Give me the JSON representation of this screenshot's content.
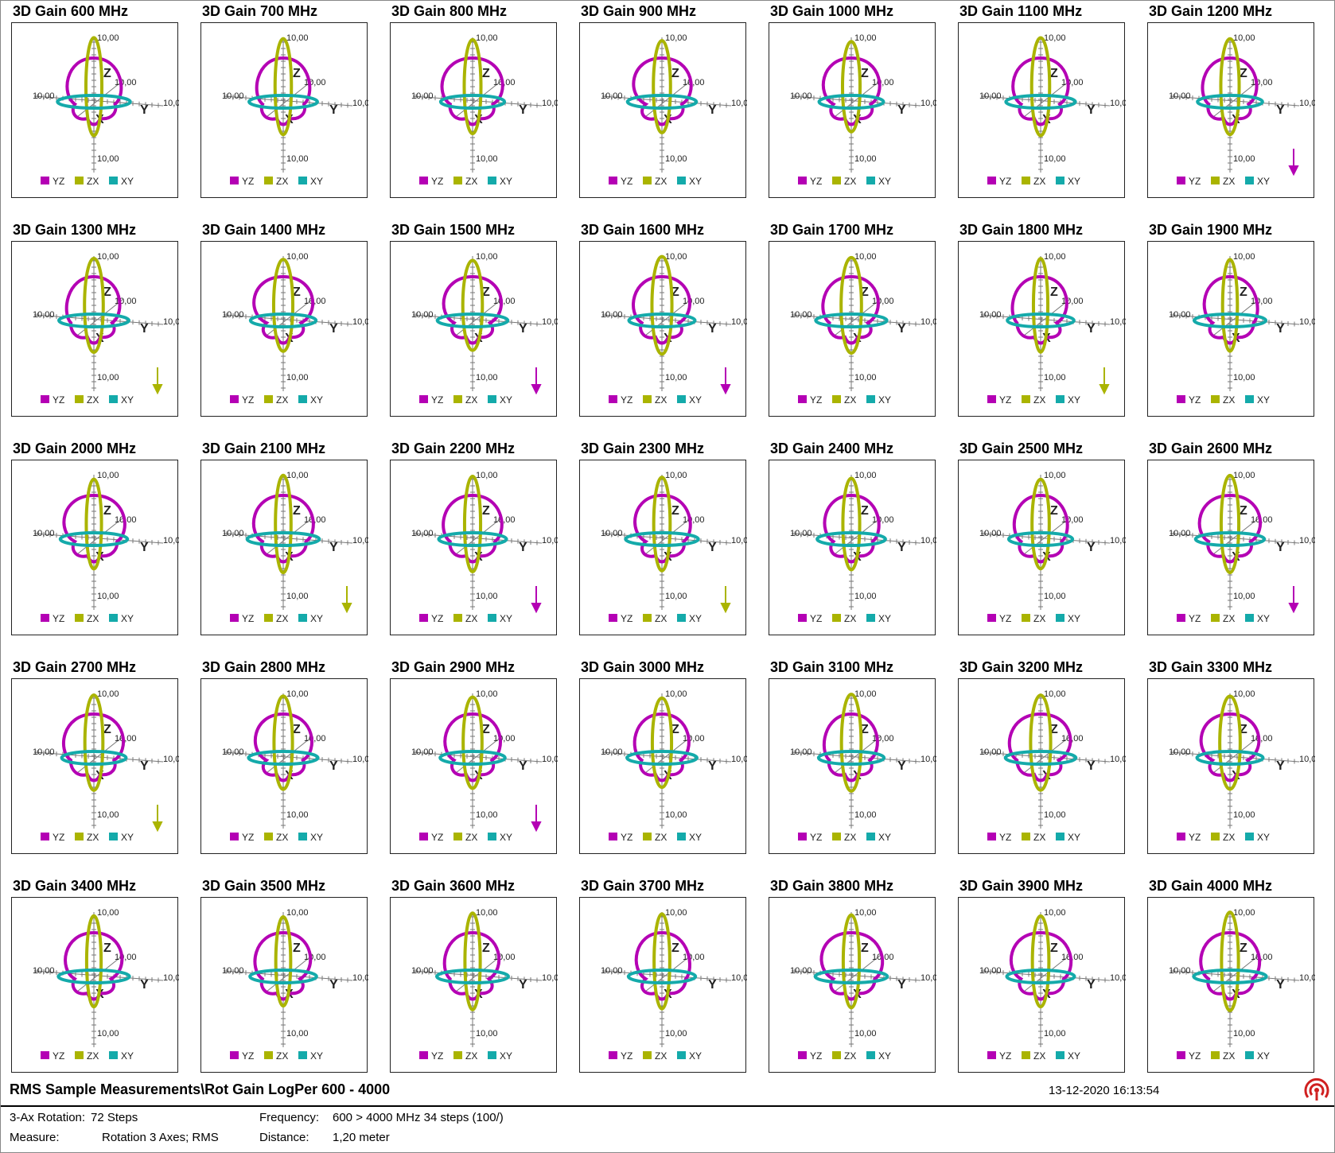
{
  "colors": {
    "YZ": "#b400b4",
    "ZX": "#aab400",
    "XY": "#14aaaa"
  },
  "chart_data": [
    {
      "type": "polar-3d",
      "title": "3D Gain 600 MHz",
      "series": [
        {
          "name": "YZ"
        },
        {
          "name": "ZX"
        },
        {
          "name": "XY"
        }
      ],
      "axis_labels": [
        "Z",
        "Y",
        "X"
      ],
      "tick_label": "10,00",
      "arrow": "none"
    },
    {
      "type": "polar-3d",
      "title": "3D Gain 700 MHz",
      "series": [
        {
          "name": "YZ"
        },
        {
          "name": "ZX"
        },
        {
          "name": "XY"
        }
      ],
      "axis_labels": [
        "Z",
        "Y",
        "X"
      ],
      "tick_label": "10,00",
      "arrow": "none"
    },
    {
      "type": "polar-3d",
      "title": "3D Gain 800 MHz",
      "series": [
        {
          "name": "YZ"
        },
        {
          "name": "ZX"
        },
        {
          "name": "XY"
        }
      ],
      "axis_labels": [
        "Z",
        "Y",
        "X"
      ],
      "tick_label": "10,00",
      "arrow": "none"
    },
    {
      "type": "polar-3d",
      "title": "3D Gain 900 MHz",
      "series": [
        {
          "name": "YZ"
        },
        {
          "name": "ZX"
        },
        {
          "name": "XY"
        }
      ],
      "axis_labels": [
        "Z",
        "Y",
        "X"
      ],
      "tick_label": "10,00",
      "arrow": "none"
    },
    {
      "type": "polar-3d",
      "title": "3D Gain 1000 MHz",
      "series": [
        {
          "name": "YZ"
        },
        {
          "name": "ZX"
        },
        {
          "name": "XY"
        }
      ],
      "axis_labels": [
        "Z",
        "Y",
        "X"
      ],
      "tick_label": "10,00",
      "arrow": "none"
    },
    {
      "type": "polar-3d",
      "title": "3D Gain 1100 MHz",
      "series": [
        {
          "name": "YZ"
        },
        {
          "name": "ZX"
        },
        {
          "name": "XY"
        }
      ],
      "axis_labels": [
        "Z",
        "Y",
        "X"
      ],
      "tick_label": "10,00",
      "arrow": "none"
    },
    {
      "type": "polar-3d",
      "title": "3D Gain 1200 MHz",
      "series": [
        {
          "name": "YZ"
        },
        {
          "name": "ZX"
        },
        {
          "name": "XY"
        }
      ],
      "axis_labels": [
        "Z",
        "Y",
        "X"
      ],
      "tick_label": "10,00",
      "arrow": "YZ"
    },
    {
      "type": "polar-3d",
      "title": "3D Gain 1300 MHz",
      "series": [
        {
          "name": "YZ"
        },
        {
          "name": "ZX"
        },
        {
          "name": "XY"
        }
      ],
      "axis_labels": [
        "Z",
        "Y",
        "X"
      ],
      "tick_label": "10,00",
      "arrow": "ZX"
    },
    {
      "type": "polar-3d",
      "title": "3D Gain 1400 MHz",
      "series": [
        {
          "name": "YZ"
        },
        {
          "name": "ZX"
        },
        {
          "name": "XY"
        }
      ],
      "axis_labels": [
        "Z",
        "Y",
        "X"
      ],
      "tick_label": "10,00",
      "arrow": "none"
    },
    {
      "type": "polar-3d",
      "title": "3D Gain 1500 MHz",
      "series": [
        {
          "name": "YZ"
        },
        {
          "name": "ZX"
        },
        {
          "name": "XY"
        }
      ],
      "axis_labels": [
        "Z",
        "Y",
        "X"
      ],
      "tick_label": "10,00",
      "arrow": "YZ"
    },
    {
      "type": "polar-3d",
      "title": "3D Gain 1600 MHz",
      "series": [
        {
          "name": "YZ"
        },
        {
          "name": "ZX"
        },
        {
          "name": "XY"
        }
      ],
      "axis_labels": [
        "Z",
        "Y",
        "X"
      ],
      "tick_label": "10,00",
      "arrow": "YZ"
    },
    {
      "type": "polar-3d",
      "title": "3D Gain 1700 MHz",
      "series": [
        {
          "name": "YZ"
        },
        {
          "name": "ZX"
        },
        {
          "name": "XY"
        }
      ],
      "axis_labels": [
        "Z",
        "Y",
        "X"
      ],
      "tick_label": "10,00",
      "arrow": "none"
    },
    {
      "type": "polar-3d",
      "title": "3D Gain 1800 MHz",
      "series": [
        {
          "name": "YZ"
        },
        {
          "name": "ZX"
        },
        {
          "name": "XY"
        }
      ],
      "axis_labels": [
        "Z",
        "Y",
        "X"
      ],
      "tick_label": "10,00",
      "arrow": "ZX"
    },
    {
      "type": "polar-3d",
      "title": "3D Gain 1900 MHz",
      "series": [
        {
          "name": "YZ"
        },
        {
          "name": "ZX"
        },
        {
          "name": "XY"
        }
      ],
      "axis_labels": [
        "Z",
        "Y",
        "X"
      ],
      "tick_label": "10,00",
      "arrow": "none"
    },
    {
      "type": "polar-3d",
      "title": "3D Gain 2000 MHz",
      "series": [
        {
          "name": "YZ"
        },
        {
          "name": "ZX"
        },
        {
          "name": "XY"
        }
      ],
      "axis_labels": [
        "Z",
        "Y",
        "X"
      ],
      "tick_label": "10,00",
      "arrow": "none"
    },
    {
      "type": "polar-3d",
      "title": "3D Gain 2100 MHz",
      "series": [
        {
          "name": "YZ"
        },
        {
          "name": "ZX"
        },
        {
          "name": "XY"
        }
      ],
      "axis_labels": [
        "Z",
        "Y",
        "X"
      ],
      "tick_label": "10,00",
      "arrow": "ZX"
    },
    {
      "type": "polar-3d",
      "title": "3D Gain 2200 MHz",
      "series": [
        {
          "name": "YZ"
        },
        {
          "name": "ZX"
        },
        {
          "name": "XY"
        }
      ],
      "axis_labels": [
        "Z",
        "Y",
        "X"
      ],
      "tick_label": "10,00",
      "arrow": "YZ"
    },
    {
      "type": "polar-3d",
      "title": "3D Gain 2300 MHz",
      "series": [
        {
          "name": "YZ"
        },
        {
          "name": "ZX"
        },
        {
          "name": "XY"
        }
      ],
      "axis_labels": [
        "Z",
        "Y",
        "X"
      ],
      "tick_label": "10,00",
      "arrow": "ZX"
    },
    {
      "type": "polar-3d",
      "title": "3D Gain 2400 MHz",
      "series": [
        {
          "name": "YZ"
        },
        {
          "name": "ZX"
        },
        {
          "name": "XY"
        }
      ],
      "axis_labels": [
        "Z",
        "Y",
        "X"
      ],
      "tick_label": "10,00",
      "arrow": "none"
    },
    {
      "type": "polar-3d",
      "title": "3D Gain 2500 MHz",
      "series": [
        {
          "name": "YZ"
        },
        {
          "name": "ZX"
        },
        {
          "name": "XY"
        }
      ],
      "axis_labels": [
        "Z",
        "Y",
        "X"
      ],
      "tick_label": "10,00",
      "arrow": "none"
    },
    {
      "type": "polar-3d",
      "title": "3D Gain 2600 MHz",
      "series": [
        {
          "name": "YZ"
        },
        {
          "name": "ZX"
        },
        {
          "name": "XY"
        }
      ],
      "axis_labels": [
        "Z",
        "Y",
        "X"
      ],
      "tick_label": "10,00",
      "arrow": "YZ"
    },
    {
      "type": "polar-3d",
      "title": "3D Gain 2700 MHz",
      "series": [
        {
          "name": "YZ"
        },
        {
          "name": "ZX"
        },
        {
          "name": "XY"
        }
      ],
      "axis_labels": [
        "Z",
        "Y",
        "X"
      ],
      "tick_label": "10,00",
      "arrow": "ZX"
    },
    {
      "type": "polar-3d",
      "title": "3D Gain 2800 MHz",
      "series": [
        {
          "name": "YZ"
        },
        {
          "name": "ZX"
        },
        {
          "name": "XY"
        }
      ],
      "axis_labels": [
        "Z",
        "Y",
        "X"
      ],
      "tick_label": "10,00",
      "arrow": "none"
    },
    {
      "type": "polar-3d",
      "title": "3D Gain 2900 MHz",
      "series": [
        {
          "name": "YZ"
        },
        {
          "name": "ZX"
        },
        {
          "name": "XY"
        }
      ],
      "axis_labels": [
        "Z",
        "Y",
        "X"
      ],
      "tick_label": "10,00",
      "arrow": "YZ"
    },
    {
      "type": "polar-3d",
      "title": "3D Gain 3000 MHz",
      "series": [
        {
          "name": "YZ"
        },
        {
          "name": "ZX"
        },
        {
          "name": "XY"
        }
      ],
      "axis_labels": [
        "Z",
        "Y",
        "X"
      ],
      "tick_label": "10,00",
      "arrow": "none"
    },
    {
      "type": "polar-3d",
      "title": "3D Gain 3100 MHz",
      "series": [
        {
          "name": "YZ"
        },
        {
          "name": "ZX"
        },
        {
          "name": "XY"
        }
      ],
      "axis_labels": [
        "Z",
        "Y",
        "X"
      ],
      "tick_label": "10,00",
      "arrow": "none"
    },
    {
      "type": "polar-3d",
      "title": "3D Gain 3200 MHz",
      "series": [
        {
          "name": "YZ"
        },
        {
          "name": "ZX"
        },
        {
          "name": "XY"
        }
      ],
      "axis_labels": [
        "Z",
        "Y",
        "X"
      ],
      "tick_label": "10,00",
      "arrow": "none"
    },
    {
      "type": "polar-3d",
      "title": "3D Gain 3300 MHz",
      "series": [
        {
          "name": "YZ"
        },
        {
          "name": "ZX"
        },
        {
          "name": "XY"
        }
      ],
      "axis_labels": [
        "Z",
        "Y",
        "X"
      ],
      "tick_label": "10,00",
      "arrow": "none"
    },
    {
      "type": "polar-3d",
      "title": "3D Gain 3400 MHz",
      "series": [
        {
          "name": "YZ"
        },
        {
          "name": "ZX"
        },
        {
          "name": "XY"
        }
      ],
      "axis_labels": [
        "Z",
        "Y",
        "X"
      ],
      "tick_label": "10,00",
      "arrow": "none"
    },
    {
      "type": "polar-3d",
      "title": "3D Gain 3500 MHz",
      "series": [
        {
          "name": "YZ"
        },
        {
          "name": "ZX"
        },
        {
          "name": "XY"
        }
      ],
      "axis_labels": [
        "Z",
        "Y",
        "X"
      ],
      "tick_label": "10,00",
      "arrow": "none"
    },
    {
      "type": "polar-3d",
      "title": "3D Gain 3600 MHz",
      "series": [
        {
          "name": "YZ"
        },
        {
          "name": "ZX"
        },
        {
          "name": "XY"
        }
      ],
      "axis_labels": [
        "Z",
        "Y",
        "X"
      ],
      "tick_label": "10,00",
      "arrow": "none"
    },
    {
      "type": "polar-3d",
      "title": "3D Gain 3700 MHz",
      "series": [
        {
          "name": "YZ"
        },
        {
          "name": "ZX"
        },
        {
          "name": "XY"
        }
      ],
      "axis_labels": [
        "Z",
        "Y",
        "X"
      ],
      "tick_label": "10,00",
      "arrow": "none"
    },
    {
      "type": "polar-3d",
      "title": "3D Gain 3800 MHz",
      "series": [
        {
          "name": "YZ"
        },
        {
          "name": "ZX"
        },
        {
          "name": "XY"
        }
      ],
      "axis_labels": [
        "Z",
        "Y",
        "X"
      ],
      "tick_label": "10,00",
      "arrow": "none"
    },
    {
      "type": "polar-3d",
      "title": "3D Gain 3900 MHz",
      "series": [
        {
          "name": "YZ"
        },
        {
          "name": "ZX"
        },
        {
          "name": "XY"
        }
      ],
      "axis_labels": [
        "Z",
        "Y",
        "X"
      ],
      "tick_label": "10,00",
      "arrow": "none"
    },
    {
      "type": "polar-3d",
      "title": "3D Gain 4000 MHz",
      "series": [
        {
          "name": "YZ"
        },
        {
          "name": "ZX"
        },
        {
          "name": "XY"
        }
      ],
      "axis_labels": [
        "Z",
        "Y",
        "X"
      ],
      "tick_label": "10,00",
      "arrow": "none"
    }
  ],
  "footer": {
    "title": "RMS Sample Measurements\\Rot Gain LogPer 600 - 4000",
    "timestamp": "13-12-2020 16:13:54",
    "logo_icon": "antenna-signal-icon"
  },
  "info": {
    "rotation_label": "3-Ax Rotation:",
    "rotation_value": "72 Steps",
    "frequency_label": "Frequency:",
    "frequency_value": "600 > 4000 MHz 34 steps (100/)",
    "measure_label": "Measure:",
    "measure_value": "Rotation 3 Axes; RMS",
    "distance_label": "Distance:",
    "distance_value": "1,20 meter"
  }
}
